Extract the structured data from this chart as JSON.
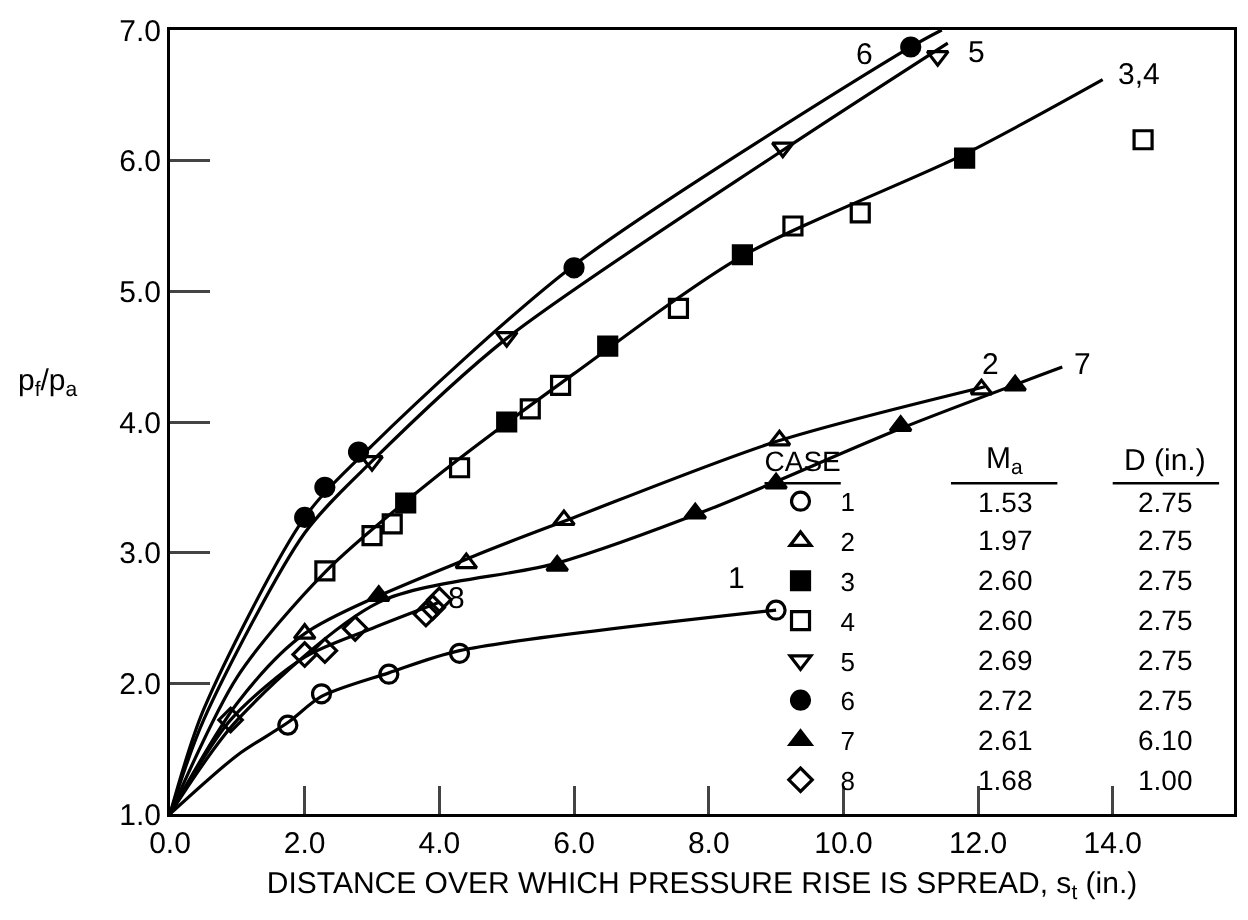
{
  "chart_data": {
    "type": "scatter",
    "xlabel": "DISTANCE OVER WHICH PRESSURE RISE IS SPREAD, s$_{t}$ (in.)",
    "ylabel": "p$_{f}$/p$_{a}$",
    "legend_title": "CASE",
    "legend": "bottom right",
    "xlim": [
      0,
      15.8
    ],
    "ylim": [
      1,
      7
    ],
    "xticks": [
      {
        "value": 0,
        "label": "0.0"
      },
      {
        "value": 2,
        "label": "2.0"
      },
      {
        "value": 4,
        "label": "4.0"
      },
      {
        "value": 6,
        "label": "6.0"
      },
      {
        "value": 8,
        "label": "8.0"
      },
      {
        "value": 10,
        "label": "10.0"
      },
      {
        "value": 12,
        "label": "12.0"
      },
      {
        "value": 14,
        "label": "14.0"
      }
    ],
    "yticks": [
      {
        "value": 1,
        "label": "1.0"
      },
      {
        "value": 2,
        "label": "2.0"
      },
      {
        "value": 3,
        "label": "3.0"
      },
      {
        "value": 4,
        "label": "4.0"
      },
      {
        "value": 5,
        "label": "5.0"
      },
      {
        "value": 6,
        "label": "6.0"
      },
      {
        "value": 7,
        "label": "7.0"
      }
    ],
    "series": [
      {
        "name": "1",
        "marker": "circle-open",
        "color": "#000000",
        "x": [
          1.75,
          2.25,
          3.25,
          4.3,
          9.0
        ],
        "values": [
          1.68,
          1.92,
          2.07,
          2.23,
          2.56
        ]
      },
      {
        "name": "2",
        "marker": "triangle-open",
        "color": "#000000",
        "x": [
          2.0,
          4.4,
          5.85,
          9.05,
          12.05
        ],
        "values": [
          2.38,
          2.92,
          3.25,
          3.86,
          4.25
        ]
      },
      {
        "name": "3",
        "marker": "square",
        "color": "#000000",
        "x": [
          3.5,
          5.0,
          6.5,
          8.5,
          11.8
        ],
        "values": [
          3.38,
          4.0,
          4.58,
          5.28,
          6.02
        ]
      },
      {
        "name": "4",
        "marker": "square-open",
        "color": "#000000",
        "x": [
          2.3,
          3.0,
          3.3,
          4.3,
          5.35,
          5.8,
          7.55,
          9.25,
          10.25,
          14.45
        ],
        "values": [
          2.86,
          3.13,
          3.22,
          3.65,
          4.1,
          4.28,
          4.87,
          5.5,
          5.6,
          6.16
        ]
      },
      {
        "name": "5",
        "marker": "triangle-down-open",
        "color": "#000000",
        "x": [
          3.0,
          5.0,
          9.1,
          11.4
        ],
        "values": [
          3.7,
          4.65,
          6.1,
          6.8
        ]
      },
      {
        "name": "6",
        "marker": "circle",
        "color": "#000000",
        "x": [
          2.0,
          2.3,
          2.8,
          6.0,
          11.0
        ],
        "values": [
          3.27,
          3.5,
          3.77,
          5.18,
          6.87
        ]
      },
      {
        "name": "7",
        "marker": "triangle",
        "color": "#000000",
        "x": [
          3.1,
          5.75,
          7.8,
          9.0,
          10.85,
          12.55
        ],
        "values": [
          2.67,
          2.9,
          3.3,
          3.53,
          3.97,
          4.28
        ]
      },
      {
        "name": "8",
        "marker": "diamond-open",
        "color": "#000000",
        "x": [
          0.9,
          2.0,
          2.3,
          2.75,
          3.8,
          3.9,
          4.0
        ],
        "values": [
          1.72,
          2.22,
          2.25,
          2.42,
          2.53,
          2.58,
          2.64
        ]
      },
      {
        "type": "line",
        "name": "6",
        "marker": "none",
        "color": "#000000",
        "x": [
          0,
          0.5,
          2.0,
          3.0,
          6.0,
          11.0,
          11.46
        ],
        "values": [
          1,
          1.8,
          3.27,
          3.82,
          5.2,
          6.87,
          7.0
        ]
      },
      {
        "type": "line",
        "name": "5",
        "marker": "none",
        "color": "#000000",
        "x": [
          0,
          0.5,
          2.0,
          3.0,
          5.0,
          9.1,
          11.55
        ],
        "values": [
          1,
          1.72,
          3.15,
          3.7,
          4.64,
          6.08,
          6.9
        ]
      },
      {
        "type": "line",
        "name": "3,4",
        "marker": "none",
        "color": "#000000",
        "x": [
          0,
          1.0,
          2.3,
          4.0,
          6.0,
          8.5,
          11.8,
          13.85
        ],
        "values": [
          1,
          2.05,
          2.85,
          3.6,
          4.37,
          5.27,
          6.05,
          6.62
        ]
      },
      {
        "type": "line",
        "name": "2",
        "marker": "none",
        "color": "#000000",
        "x": [
          0,
          1.0,
          2.0,
          4.4,
          6.0,
          9.0,
          12.1
        ],
        "values": [
          1,
          1.85,
          2.38,
          2.95,
          3.27,
          3.85,
          4.27
        ]
      },
      {
        "type": "line",
        "name": "7",
        "marker": "none",
        "color": "#000000",
        "x": [
          0,
          1.0,
          3.1,
          5.75,
          8.0,
          10.85,
          13.25
        ],
        "values": [
          1,
          1.72,
          2.62,
          2.92,
          3.33,
          3.95,
          4.42
        ]
      },
      {
        "type": "line",
        "name": "1",
        "marker": "none",
        "color": "#000000",
        "x": [
          0,
          1.0,
          1.75,
          2.25,
          3.25,
          4.3,
          9.0
        ],
        "values": [
          1,
          1.45,
          1.7,
          1.9,
          2.08,
          2.25,
          2.56
        ]
      },
      {
        "type": "line",
        "name": "8",
        "marker": "none",
        "color": "#000000",
        "x": [
          0,
          0.9,
          2.0,
          3.0,
          4.0
        ],
        "values": [
          1,
          1.72,
          2.2,
          2.42,
          2.62
        ]
      }
    ],
    "annotations": [
      "M$_{a}$",
      "D (in.)",
      "1.53",
      "2.75",
      "1.97",
      "2.75",
      "2.60",
      "2.75",
      "2.60",
      "2.75",
      "2.69",
      "2.75",
      "2.72",
      "2.75",
      "2.61",
      "6.10",
      "1.68",
      "1.00"
    ]
  }
}
